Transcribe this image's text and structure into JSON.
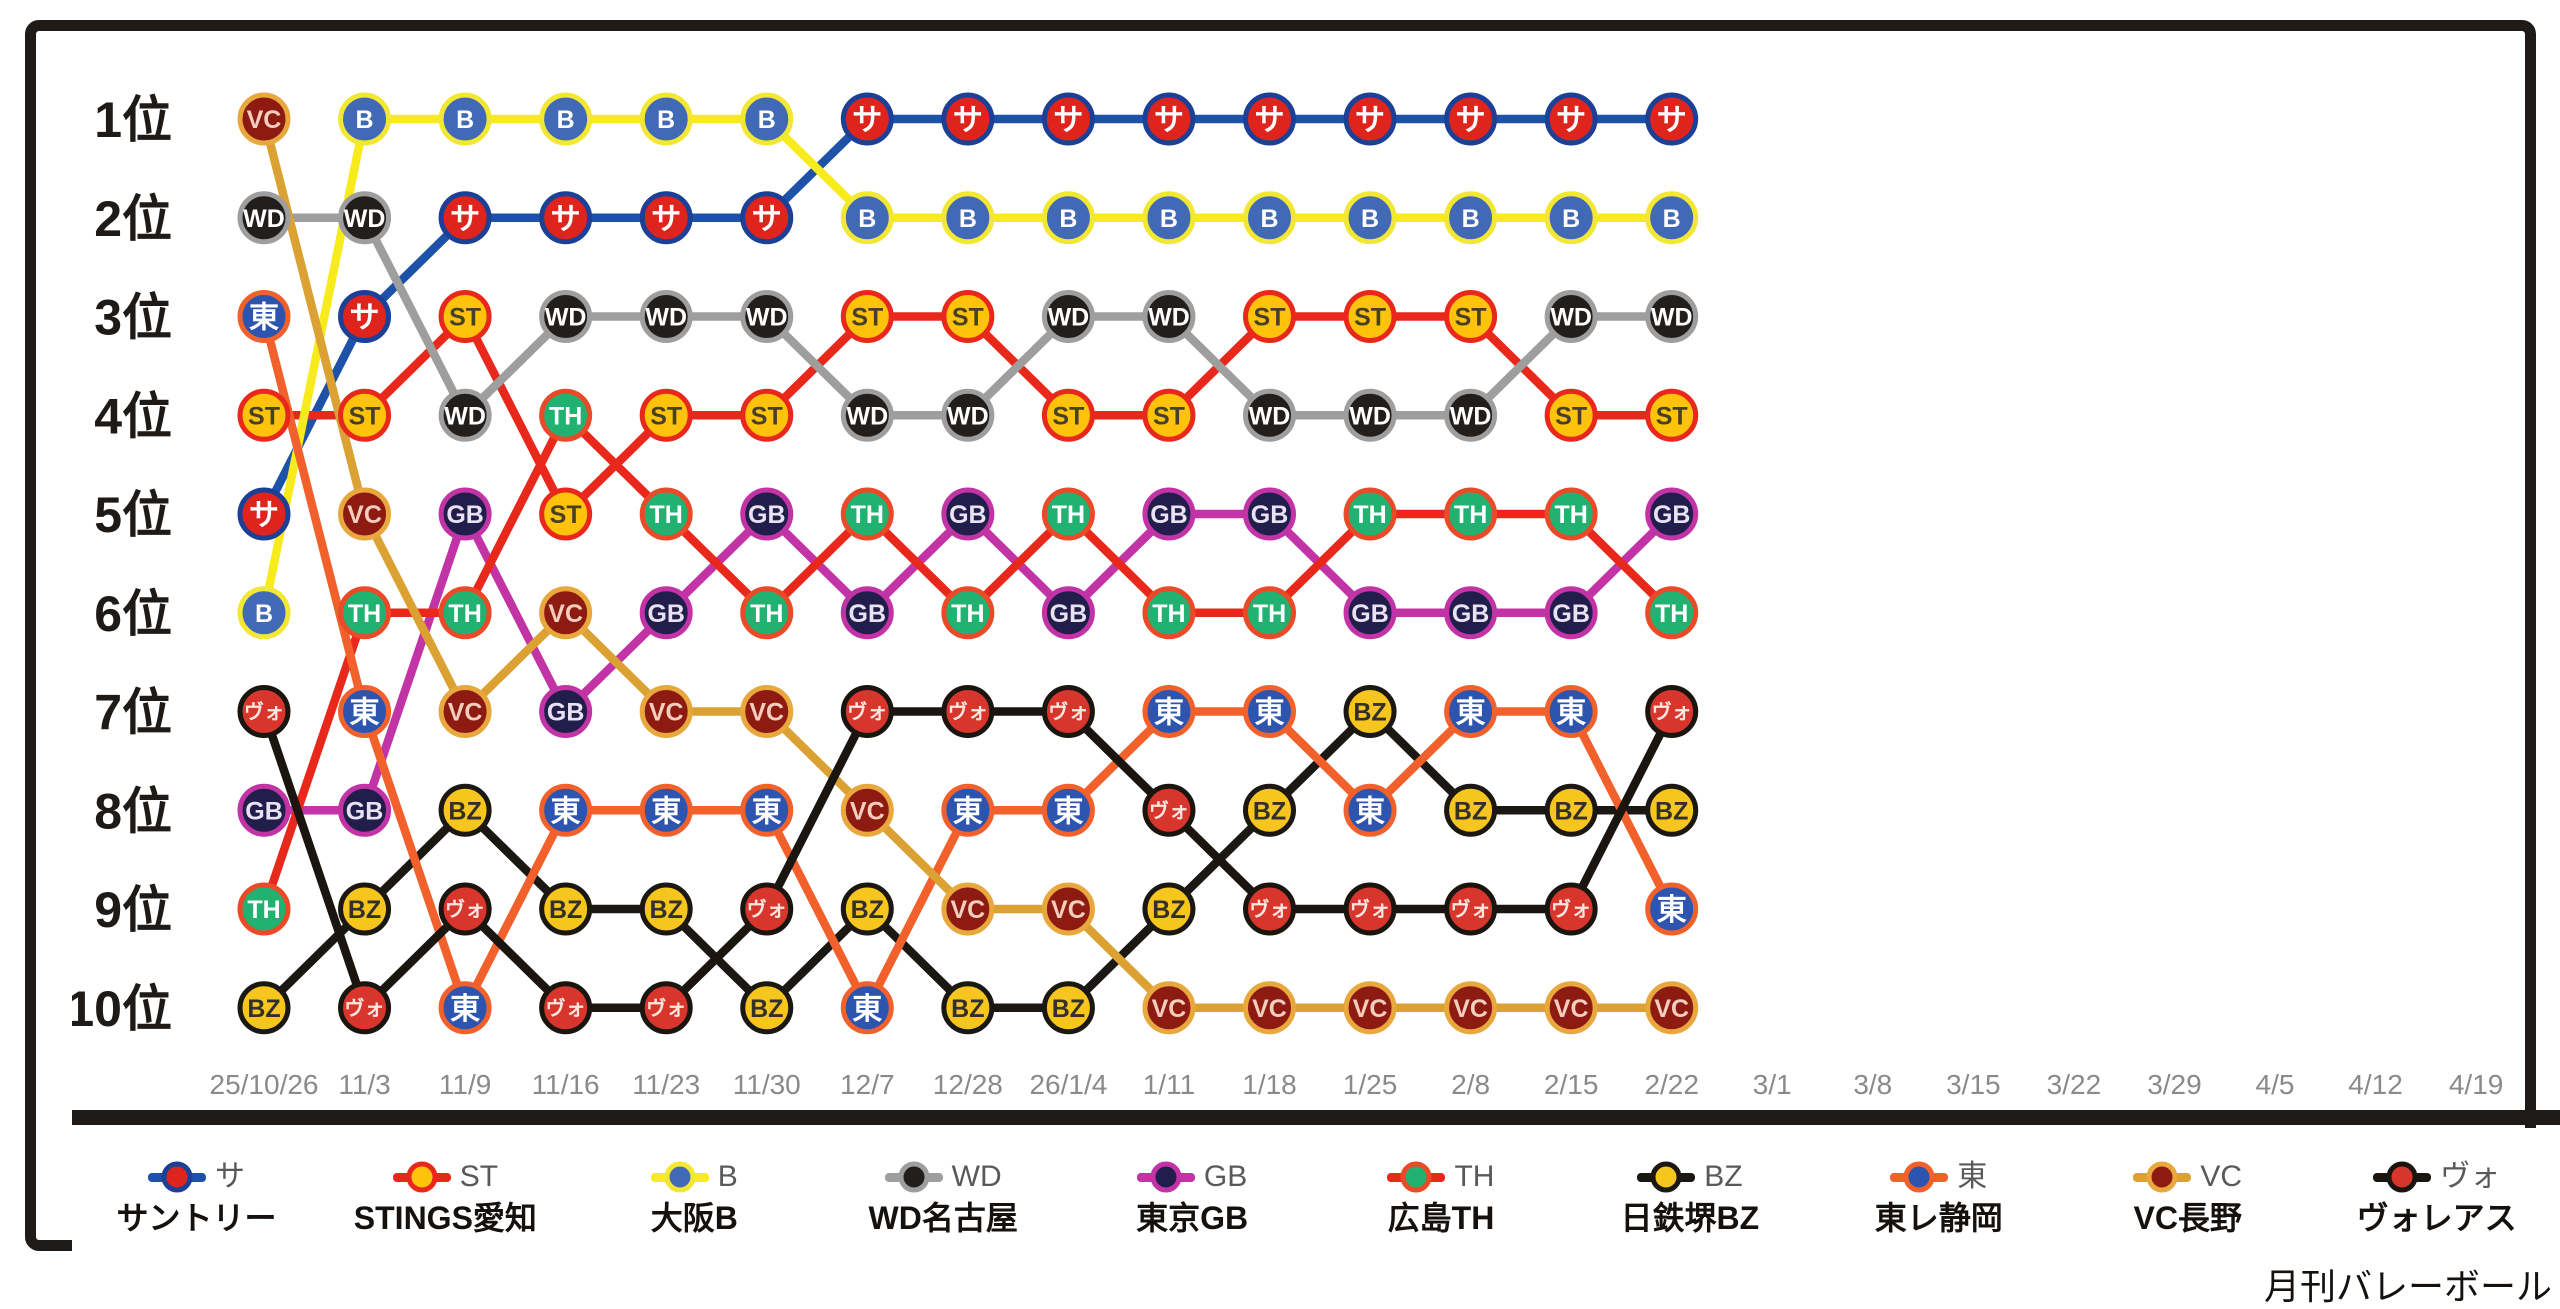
{
  "footer": {
    "credit": "月刊バレーボール"
  },
  "chart_data": {
    "type": "line",
    "subtype": "bump-ranking",
    "title": "",
    "x": [
      "25/10/26",
      "11/3",
      "11/9",
      "11/16",
      "11/23",
      "11/30",
      "12/7",
      "12/28",
      "26/1/4",
      "1/11",
      "1/18",
      "1/25",
      "2/8",
      "2/15",
      "2/22",
      "3/1",
      "3/8",
      "3/15",
      "3/22",
      "3/29",
      "4/5",
      "4/12",
      "4/19"
    ],
    "y_labels": [
      "1位",
      "2位",
      "3位",
      "4位",
      "5位",
      "6位",
      "7位",
      "8位",
      "9位",
      "10位"
    ],
    "played_dates": 15,
    "axis_label_color": "#8a8a8a",
    "rank_label_color": "#1d1a17",
    "series": [
      {
        "abbr": "サ",
        "name": "サントリー",
        "ranks": [
          5,
          3,
          2,
          2,
          2,
          2,
          1,
          1,
          1,
          1,
          1,
          1,
          1,
          1,
          1
        ],
        "colors": {
          "line": "#1d52a8",
          "fill": "#df241e",
          "ring": "#1c4095",
          "text": "#ffffff"
        }
      },
      {
        "abbr": "ST",
        "name": "STINGS愛知",
        "ranks": [
          4,
          4,
          3,
          5,
          4,
          4,
          3,
          3,
          4,
          4,
          3,
          3,
          3,
          4,
          4
        ],
        "colors": {
          "line": "#e9281c",
          "fill": "#ffc30b",
          "ring": "#e9281c",
          "text": "#474026"
        }
      },
      {
        "abbr": "B",
        "name": "大阪B",
        "ranks": [
          6,
          1,
          1,
          1,
          1,
          1,
          2,
          2,
          2,
          2,
          2,
          2,
          2,
          2,
          2
        ],
        "colors": {
          "line": "#f7ea1d",
          "fill": "#4169b5",
          "ring": "#f2e833",
          "text": "#ffffff"
        }
      },
      {
        "abbr": "WD",
        "name": "WD名古屋",
        "ranks": [
          2,
          2,
          4,
          3,
          3,
          3,
          4,
          4,
          3,
          3,
          4,
          4,
          4,
          3,
          3
        ],
        "colors": {
          "line": "#9e9e9e",
          "fill": "#221e1c",
          "ring": "#9e9e9e",
          "text": "#ffffff"
        }
      },
      {
        "abbr": "GB",
        "name": "東京GB",
        "ranks": [
          8,
          8,
          5,
          7,
          6,
          5,
          6,
          5,
          6,
          5,
          5,
          6,
          6,
          6,
          5
        ],
        "colors": {
          "line": "#c233a6",
          "fill": "#221e4c",
          "ring": "#c233a6",
          "text": "#e8e2f2"
        }
      },
      {
        "abbr": "TH",
        "name": "広島TH",
        "ranks": [
          9,
          6,
          6,
          4,
          5,
          6,
          5,
          6,
          5,
          6,
          6,
          5,
          5,
          5,
          6
        ],
        "colors": {
          "line": "#e9281c",
          "fill": "#21b271",
          "ring": "#ea4a28",
          "text": "#ffffff"
        }
      },
      {
        "abbr": "BZ",
        "name": "日鉄堺BZ",
        "ranks": [
          10,
          9,
          8,
          9,
          9,
          10,
          9,
          10,
          10,
          9,
          8,
          7,
          8,
          8,
          8
        ],
        "colors": {
          "line": "#1b1713",
          "fill": "#f6c51e",
          "ring": "#1b1713",
          "text": "#33302b"
        }
      },
      {
        "abbr": "東",
        "name": "東レ静岡",
        "ranks": [
          3,
          7,
          10,
          8,
          8,
          8,
          10,
          8,
          8,
          7,
          7,
          8,
          7,
          7,
          9
        ],
        "colors": {
          "line": "#f2612b",
          "fill": "#2d54ae",
          "ring": "#f2612b",
          "text": "#ffffff"
        }
      },
      {
        "abbr": "VC",
        "name": "VC長野",
        "ranks": [
          1,
          5,
          7,
          6,
          7,
          7,
          8,
          9,
          9,
          10,
          10,
          10,
          10,
          10,
          10
        ],
        "colors": {
          "line": "#dba133",
          "fill": "#8d1b12",
          "ring": "#e9a83d",
          "text": "#f3cdbd"
        }
      },
      {
        "abbr": "ヴォ",
        "name": "ヴォレアス",
        "ranks": [
          7,
          10,
          9,
          10,
          10,
          9,
          7,
          7,
          7,
          8,
          9,
          9,
          9,
          9,
          7
        ],
        "colors": {
          "line": "#1b1510",
          "fill": "#d8362c",
          "ring": "#1b1510",
          "text": "#fbe7e0"
        }
      }
    ]
  }
}
